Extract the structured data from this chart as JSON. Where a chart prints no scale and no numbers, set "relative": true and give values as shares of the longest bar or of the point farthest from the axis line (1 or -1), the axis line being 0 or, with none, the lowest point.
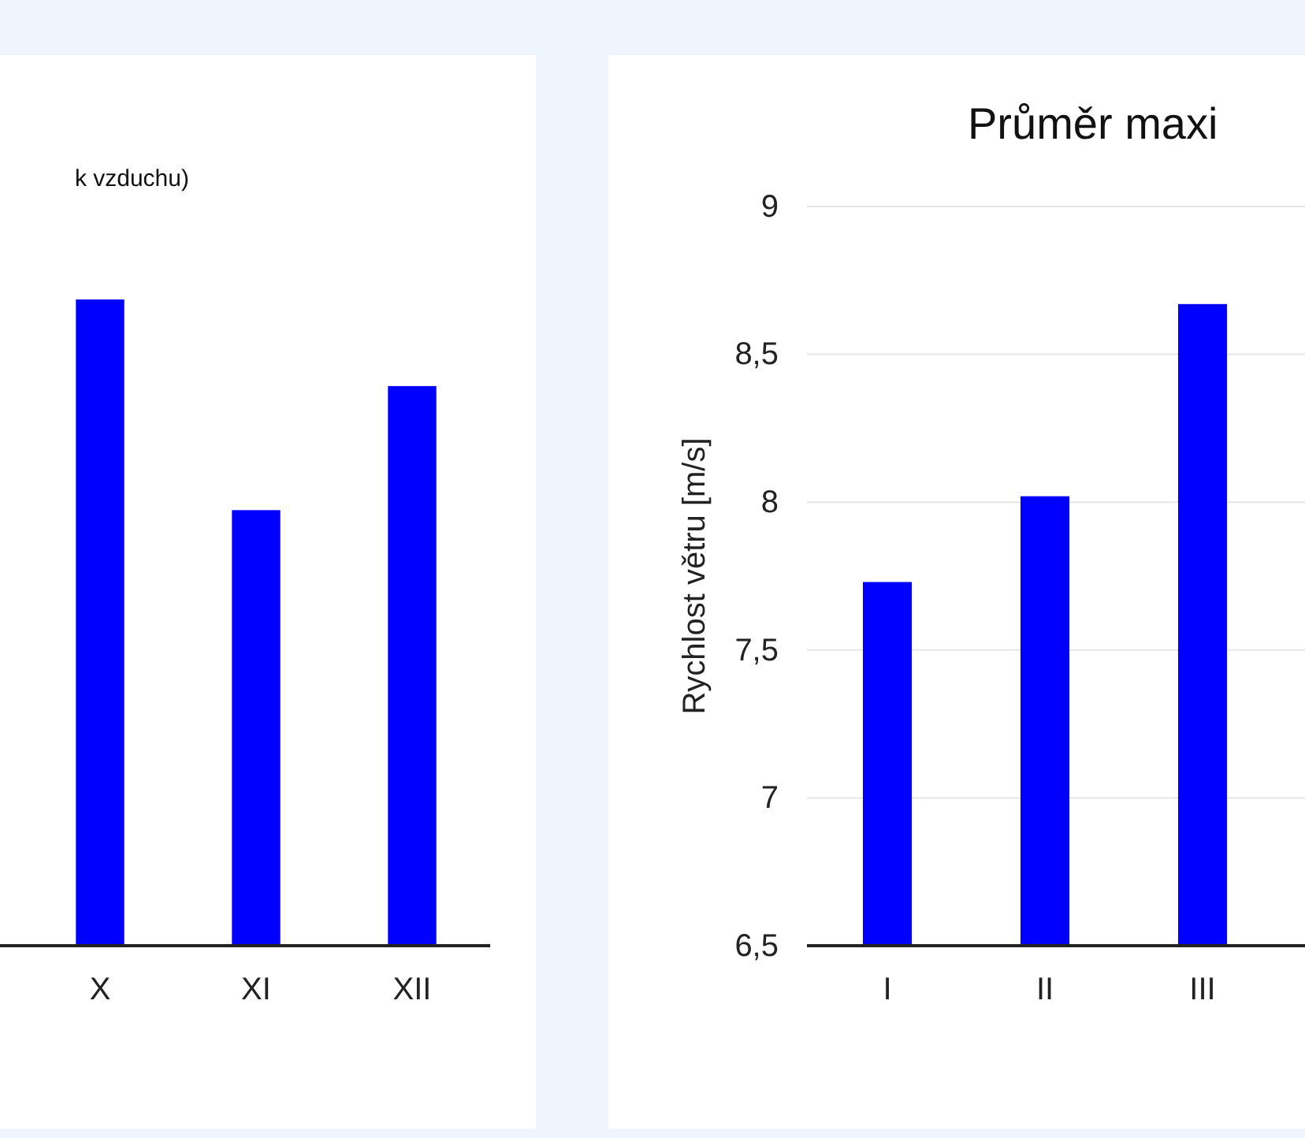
{
  "chart_data": [
    {
      "type": "bar",
      "title": "k vzduchu)",
      "categories": [
        "X",
        "XI",
        "XII"
      ],
      "values": [
        1,
        0.674,
        0.866
      ],
      "color": "#0000ff",
      "relative": true
    },
    {
      "type": "bar",
      "title": "Průměr maxi",
      "ylabel": "Rychlost větru [m/s]",
      "categories": [
        "I",
        "II",
        "III"
      ],
      "values": [
        7.73,
        8.02,
        8.67
      ],
      "color": "#0000ff",
      "ylim": [
        6.5,
        9
      ],
      "yticks": [
        {
          "value": 6.5,
          "label": "6,5"
        },
        {
          "value": 7,
          "label": "7"
        },
        {
          "value": 7.5,
          "label": "7,5"
        },
        {
          "value": 8,
          "label": "8"
        },
        {
          "value": 8.5,
          "label": "8,5"
        },
        {
          "value": 9,
          "label": "9"
        }
      ],
      "grid": true
    }
  ]
}
